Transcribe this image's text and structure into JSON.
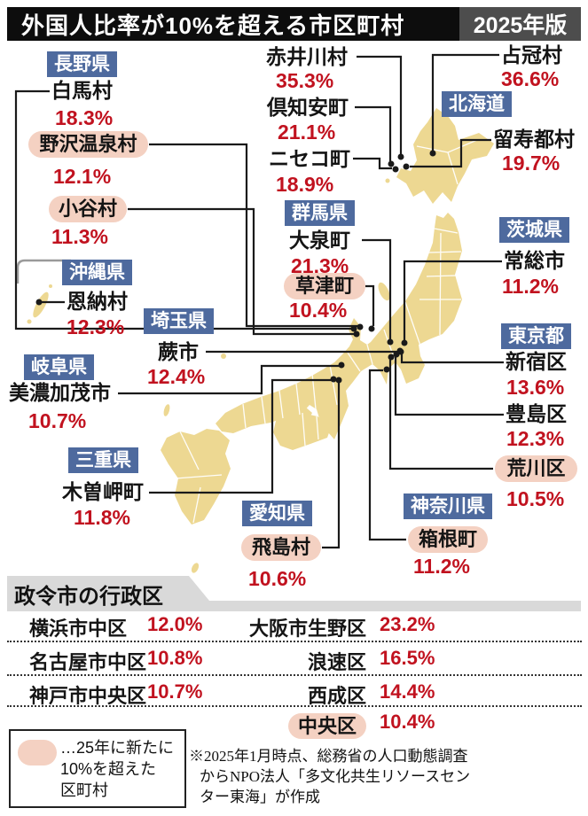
{
  "title": {
    "main": "外国人比率が10%を超える市区町村",
    "edition": "2025年版"
  },
  "colors": {
    "accent_blue": "#4e6a9e",
    "accent_red": "#c1121f",
    "highlight_pink": "#f4d1c2",
    "map_fill": "#edd892",
    "band_gray": "#d9d9d9",
    "title_black": "#0d0d0d",
    "edition_gray": "#4d4d4d"
  },
  "map": {
    "prefectures": [
      {
        "id": "nagano",
        "name": "長野県"
      },
      {
        "id": "hokkaido",
        "name": "北海道"
      },
      {
        "id": "gunma",
        "name": "群馬県"
      },
      {
        "id": "ibaraki",
        "name": "茨城県"
      },
      {
        "id": "okinawa",
        "name": "沖縄県"
      },
      {
        "id": "saitama",
        "name": "埼玉県"
      },
      {
        "id": "tokyo",
        "name": "東京都"
      },
      {
        "id": "gifu",
        "name": "岐阜県"
      },
      {
        "id": "mie",
        "name": "三重県"
      },
      {
        "id": "kanagawa",
        "name": "神奈川県"
      },
      {
        "id": "aichi",
        "name": "愛知県"
      }
    ],
    "municipalities": [
      {
        "id": "hakuba",
        "name": "白馬村",
        "pct": "18.3%",
        "new": false
      },
      {
        "id": "nozawa",
        "name": "野沢温泉村",
        "pct": "12.1%",
        "new": true
      },
      {
        "id": "otari",
        "name": "小谷村",
        "pct": "11.3%",
        "new": true
      },
      {
        "id": "onna",
        "name": "恩納村",
        "pct": "12.3%",
        "new": false
      },
      {
        "id": "warabi",
        "name": "蕨市",
        "pct": "12.4%",
        "new": false
      },
      {
        "id": "minokamo",
        "name": "美濃加茂市",
        "pct": "10.7%",
        "new": false
      },
      {
        "id": "kisosaki",
        "name": "木曽岬町",
        "pct": "11.8%",
        "new": false
      },
      {
        "id": "tobishima",
        "name": "飛島村",
        "pct": "10.6%",
        "new": true
      },
      {
        "id": "akaigawa",
        "name": "赤井川村",
        "pct": "35.3%",
        "new": false
      },
      {
        "id": "kutchan",
        "name": "倶知安町",
        "pct": "21.1%",
        "new": false
      },
      {
        "id": "niseko",
        "name": "ニセコ町",
        "pct": "18.9%",
        "new": false
      },
      {
        "id": "shimukappu",
        "name": "占冠村",
        "pct": "36.6%",
        "new": false
      },
      {
        "id": "rusutsu",
        "name": "留寿都村",
        "pct": "19.7%",
        "new": false
      },
      {
        "id": "oizumi",
        "name": "大泉町",
        "pct": "21.3%",
        "new": false
      },
      {
        "id": "kusatsu",
        "name": "草津町",
        "pct": "10.4%",
        "new": true
      },
      {
        "id": "joso",
        "name": "常総市",
        "pct": "11.2%",
        "new": false
      },
      {
        "id": "shinjuku",
        "name": "新宿区",
        "pct": "13.6%",
        "new": false
      },
      {
        "id": "toshima",
        "name": "豊島区",
        "pct": "12.3%",
        "new": false
      },
      {
        "id": "arakawa",
        "name": "荒川区",
        "pct": "10.5%",
        "new": true
      },
      {
        "id": "hakone",
        "name": "箱根町",
        "pct": "11.2%",
        "new": true
      }
    ]
  },
  "ward_section": {
    "header": "政令市の行政区",
    "left_rows": [
      {
        "name": "横浜市中区",
        "pct": "12.0%",
        "new": false
      },
      {
        "name": "名古屋市中区",
        "pct": "10.8%",
        "new": false
      },
      {
        "name": "神戸市中央区",
        "pct": "10.7%",
        "new": false
      }
    ],
    "right_rows": [
      {
        "name": "大阪市生野区",
        "pct": "23.2%",
        "new": false
      },
      {
        "name": "浪速区",
        "pct": "16.5%",
        "new": false
      },
      {
        "name": "西成区",
        "pct": "14.4%",
        "new": false
      },
      {
        "name": "中央区",
        "pct": "10.4%",
        "new": true
      }
    ]
  },
  "legend": {
    "lines": [
      "…25年に新たに",
      "10%を超えた",
      "区町村"
    ]
  },
  "source_note": {
    "lines": [
      "※2025年1月時点、総務省の人口動態調査",
      "からNPO法人「多文化共生リソースセン",
      "ター東海」が作成"
    ]
  },
  "chart_data": {
    "type": "map-labels",
    "title": "外国人比率が10%を超える市区町村 2025年版",
    "unit": "percent of foreign residents",
    "points": [
      {
        "prefecture": "北海道",
        "municipality": "占冠村",
        "value": 36.6,
        "newly_over_10pct": false
      },
      {
        "prefecture": "北海道",
        "municipality": "赤井川村",
        "value": 35.3,
        "newly_over_10pct": false
      },
      {
        "prefecture": "北海道",
        "municipality": "倶知安町",
        "value": 21.1,
        "newly_over_10pct": false
      },
      {
        "prefecture": "北海道",
        "municipality": "留寿都村",
        "value": 19.7,
        "newly_over_10pct": false
      },
      {
        "prefecture": "北海道",
        "municipality": "ニセコ町",
        "value": 18.9,
        "newly_over_10pct": false
      },
      {
        "prefecture": "長野県",
        "municipality": "白馬村",
        "value": 18.3,
        "newly_over_10pct": false
      },
      {
        "prefecture": "長野県",
        "municipality": "野沢温泉村",
        "value": 12.1,
        "newly_over_10pct": true
      },
      {
        "prefecture": "長野県",
        "municipality": "小谷村",
        "value": 11.3,
        "newly_over_10pct": true
      },
      {
        "prefecture": "群馬県",
        "municipality": "大泉町",
        "value": 21.3,
        "newly_over_10pct": false
      },
      {
        "prefecture": "群馬県",
        "municipality": "草津町",
        "value": 10.4,
        "newly_over_10pct": true
      },
      {
        "prefecture": "茨城県",
        "municipality": "常総市",
        "value": 11.2,
        "newly_over_10pct": false
      },
      {
        "prefecture": "東京都",
        "municipality": "新宿区",
        "value": 13.6,
        "newly_over_10pct": false
      },
      {
        "prefecture": "東京都",
        "municipality": "豊島区",
        "value": 12.3,
        "newly_over_10pct": false
      },
      {
        "prefecture": "東京都",
        "municipality": "荒川区",
        "value": 10.5,
        "newly_over_10pct": true
      },
      {
        "prefecture": "神奈川県",
        "municipality": "箱根町",
        "value": 11.2,
        "newly_over_10pct": true
      },
      {
        "prefecture": "埼玉県",
        "municipality": "蕨市",
        "value": 12.4,
        "newly_over_10pct": false
      },
      {
        "prefecture": "岐阜県",
        "municipality": "美濃加茂市",
        "value": 10.7,
        "newly_over_10pct": false
      },
      {
        "prefecture": "愛知県",
        "municipality": "飛島村",
        "value": 10.6,
        "newly_over_10pct": true
      },
      {
        "prefecture": "三重県",
        "municipality": "木曽岬町",
        "value": 11.8,
        "newly_over_10pct": false
      },
      {
        "prefecture": "沖縄県",
        "municipality": "恩納村",
        "value": 12.3,
        "newly_over_10pct": false
      }
    ],
    "designated_city_wards": [
      {
        "ward": "横浜市中区",
        "value": 12.0,
        "newly_over_10pct": false
      },
      {
        "ward": "名古屋市中区",
        "value": 10.8,
        "newly_over_10pct": false
      },
      {
        "ward": "神戸市中央区",
        "value": 10.7,
        "newly_over_10pct": false
      },
      {
        "ward": "大阪市生野区",
        "value": 23.2,
        "newly_over_10pct": false
      },
      {
        "ward": "大阪市浪速区",
        "value": 16.5,
        "newly_over_10pct": false
      },
      {
        "ward": "大阪市西成区",
        "value": 14.4,
        "newly_over_10pct": false
      },
      {
        "ward": "大阪市中央区",
        "value": 10.4,
        "newly_over_10pct": true
      }
    ]
  }
}
